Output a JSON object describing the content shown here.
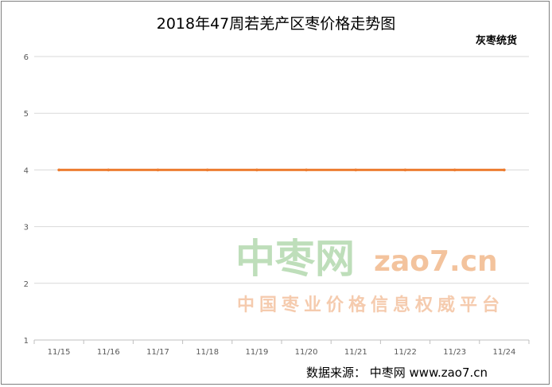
{
  "chart_data": {
    "type": "line",
    "title": "2018年47周若羌产区枣价格走势图",
    "xlabel": "",
    "ylabel": "",
    "categories": [
      "11/15",
      "11/16",
      "11/17",
      "11/18",
      "11/19",
      "11/20",
      "11/21",
      "11/22",
      "11/23",
      "11/24"
    ],
    "series": [
      {
        "name": "灰枣统货",
        "values": [
          4,
          4,
          4,
          4,
          4,
          4,
          4,
          4,
          4,
          4
        ],
        "color": "#ed7d31"
      }
    ],
    "ylim": [
      1,
      6
    ],
    "yticks": [
      1,
      2,
      3,
      4,
      5,
      6
    ],
    "grid": true,
    "legend": "top-right"
  },
  "watermark": {
    "brand": "中枣网",
    "url": "zao7.cn",
    "slogan": "中国枣业价格信息权威平台"
  },
  "source_text": "数据来源： 中枣网 www.zao7.cn"
}
